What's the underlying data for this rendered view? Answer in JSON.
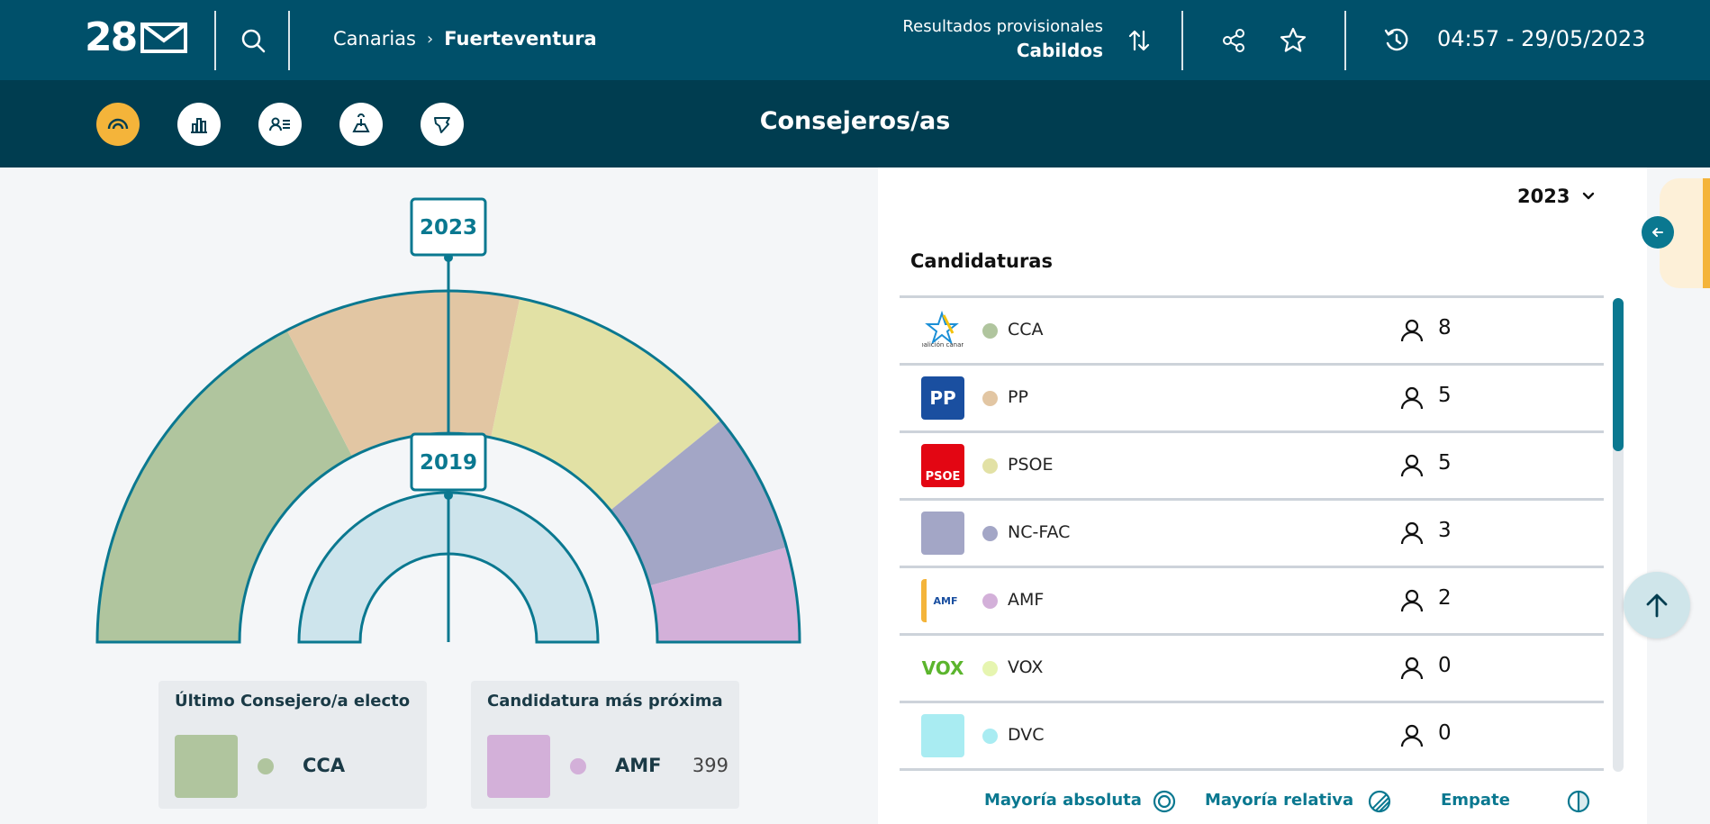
{
  "header": {
    "logo_text": "28",
    "breadcrumb": {
      "parent": "Canarias",
      "separator": "›",
      "current": "Fuerteventura"
    },
    "results_line1": "Resultados provisionales",
    "results_line2": "Cabildos",
    "datetime": "04:57 - 29/05/2023"
  },
  "subnav": {
    "title": "Consejeros/as",
    "items": [
      "hemicycle-icon",
      "bar-chart-icon",
      "candidate-list-icon",
      "map-pin-icon",
      "territory-icon"
    ]
  },
  "chart": {
    "outer_label": "2023",
    "inner_label": "2019",
    "outer_ring": [
      {
        "party": "CCA",
        "seats": 8,
        "color": "#b0c59e"
      },
      {
        "party": "PP",
        "seats": 5,
        "color": "#e2c6a3"
      },
      {
        "party": "PSOE",
        "seats": 5,
        "color": "#e2e1a5"
      },
      {
        "party": "NC-FAC",
        "seats": 3,
        "color": "#a3a6c6"
      },
      {
        "party": "AMF",
        "seats": 2,
        "color": "#d3b0d9"
      }
    ],
    "inner_ring_color": "#cde4ec",
    "stroke_color": "#0a7890"
  },
  "legend_last": {
    "title": "Último Consejero/a electo",
    "party": "CCA",
    "color": "#b0c59e"
  },
  "legend_next": {
    "title": "Candidatura más próxima",
    "party": "AMF",
    "votes": "399",
    "color": "#d3b0d9"
  },
  "panel": {
    "year": "2023",
    "title": "Candidaturas",
    "rows": [
      {
        "party": "CCA",
        "seats": "8",
        "color": "#b0c59e",
        "logo": "coalicion-canaria-logo",
        "logo_text": "coalición canaria"
      },
      {
        "party": "PP",
        "seats": "5",
        "color": "#e2c6a3",
        "logo": "pp-logo",
        "logo_text": "PP"
      },
      {
        "party": "PSOE",
        "seats": "5",
        "color": "#e2e1a5",
        "logo": "psoe-logo",
        "logo_text": "PSOE"
      },
      {
        "party": "NC-FAC",
        "seats": "3",
        "color": "#a3a6c6",
        "logo": "nc-fac-swatch",
        "logo_text": ""
      },
      {
        "party": "AMF",
        "seats": "2",
        "color": "#d3b0d9",
        "logo": "amf-logo",
        "logo_text": "AMF"
      },
      {
        "party": "VOX",
        "seats": "0",
        "color": "#e6f5b0",
        "logo": "vox-logo",
        "logo_text": "VOX"
      },
      {
        "party": "DVC",
        "seats": "0",
        "color": "#a9ecf2",
        "logo": "dvc-swatch",
        "logo_text": ""
      }
    ],
    "footer": {
      "absolute": "Mayoría absoluta",
      "relative": "Mayoría relativa",
      "tie": "Empate"
    }
  },
  "colors": {
    "topbar": "#00506a",
    "subbar": "#003d50",
    "accent": "#0a7890",
    "active_nav": "#f4b43a"
  }
}
